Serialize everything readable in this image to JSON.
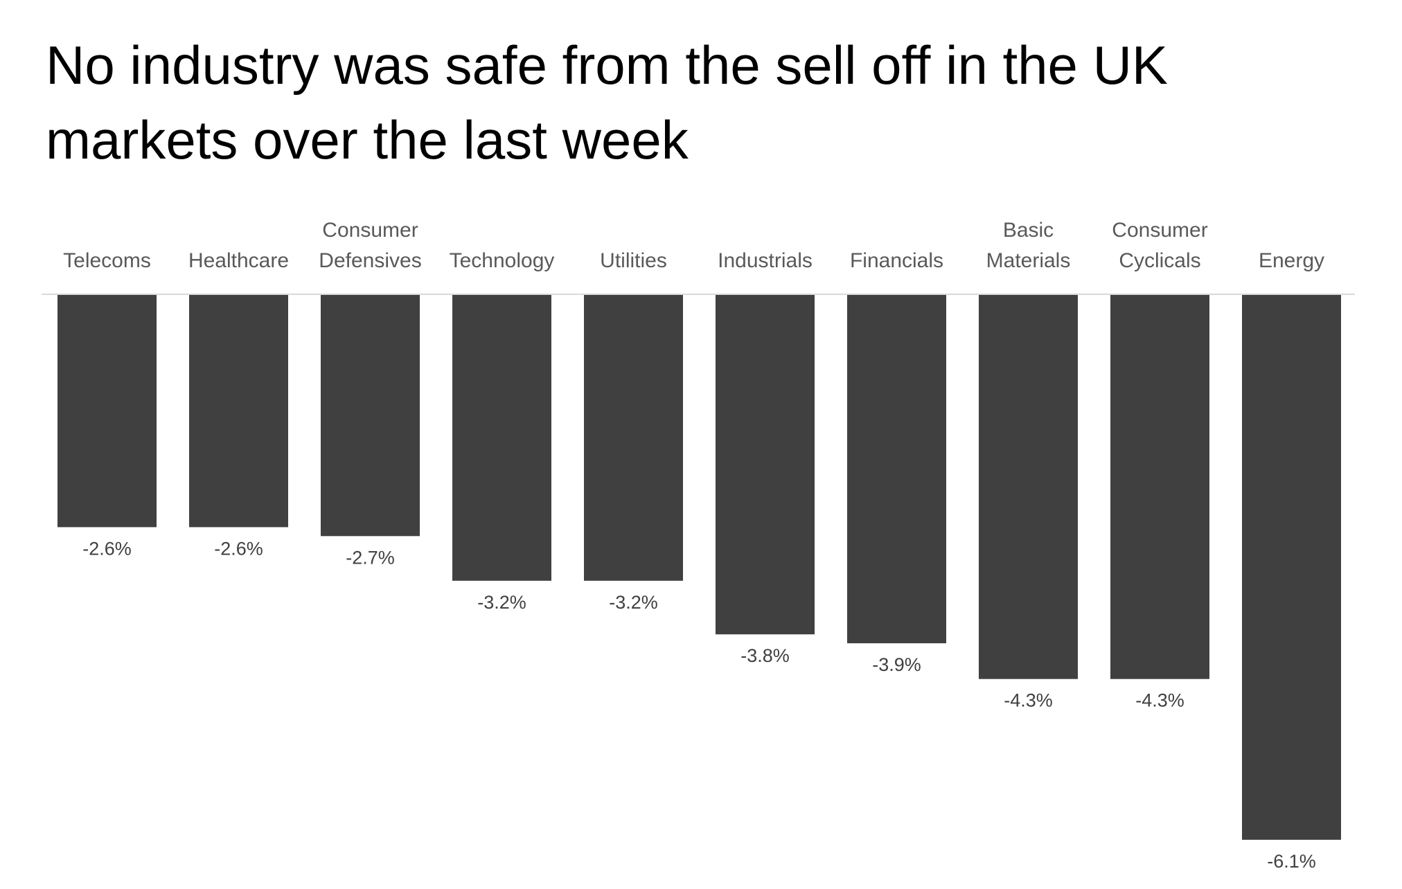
{
  "chart_data": {
    "type": "bar",
    "title": "No industry was safe from the sell off in the UK markets over the last week",
    "xlabel": "",
    "ylabel": "",
    "categories": [
      [
        "Telecoms"
      ],
      [
        "Healthcare"
      ],
      [
        "Consumer",
        "Defensives"
      ],
      [
        "Technology"
      ],
      [
        "Utilities"
      ],
      [
        "Industrials"
      ],
      [
        "Financials"
      ],
      [
        "Basic",
        "Materials"
      ],
      [
        "Consumer",
        "Cyclicals"
      ],
      [
        "Energy"
      ]
    ],
    "values": [
      -2.6,
      -2.6,
      -2.7,
      -3.2,
      -3.2,
      -3.8,
      -3.9,
      -4.3,
      -4.3,
      -6.1
    ],
    "value_labels": [
      "-2.6%",
      "-2.6%",
      "-2.7%",
      "-3.2%",
      "-3.2%",
      "-3.8%",
      "-3.9%",
      "-4.3%",
      "-4.3%",
      "-6.1%"
    ],
    "ylim": [
      -6.1,
      0
    ],
    "unit": "%",
    "grid": false,
    "legend": "none",
    "category_axis_position": "top",
    "colors": {
      "bar": "#404040",
      "axis": "#d9d9d9",
      "category_text": "#595959",
      "value_text": "#404040"
    }
  }
}
